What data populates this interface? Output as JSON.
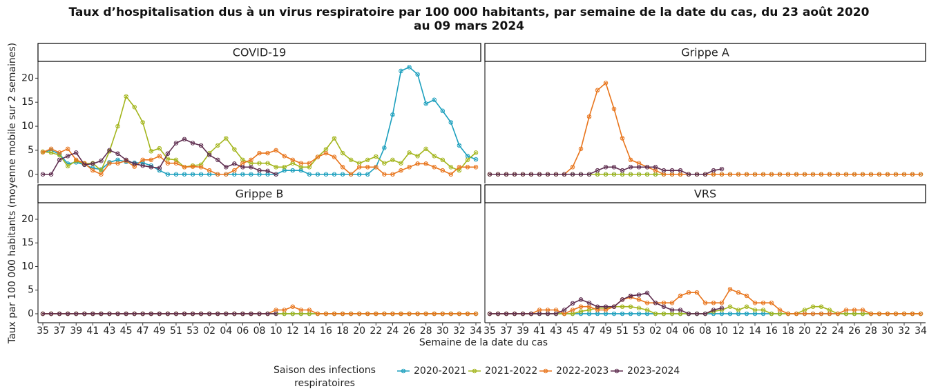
{
  "title": "Taux d’hospitalisation dus à un virus respiratoire par 100 000 habitants, par semaine de la date du cas, du 23 août 2020\nau 09 mars 2024",
  "x_label": "Semaine de la date du cas",
  "y_label": "Taux par 100 000 habitants (moyenne mobile sur 2 semaines)",
  "legend_title": "Saison des infections\nrespiratoires",
  "categories": [
    "35",
    null,
    "37",
    null,
    "39",
    null,
    "41",
    null,
    "43",
    null,
    "45",
    null,
    "47",
    null,
    "49",
    null,
    "51",
    null,
    "53",
    null,
    "02",
    null,
    "04",
    null,
    "06",
    null,
    "08",
    null,
    "10",
    null,
    "12",
    null,
    "14",
    null,
    "16",
    null,
    "18",
    null,
    "20",
    null,
    "22",
    null,
    "24",
    null,
    "26",
    null,
    "28",
    null,
    "30",
    null,
    "32",
    null,
    "34"
  ],
  "ylim": [
    -1.9,
    23.5
  ],
  "yticks": [
    0,
    5,
    10,
    15,
    20
  ],
  "chart_data": [
    {
      "type": "line",
      "title": "COVID-19",
      "series": [
        {
          "name": "2020-2021",
          "color": "#1b9fbd",
          "values": [
            4.6,
            5.0,
            4.2,
            2.2,
            2.5,
            2.0,
            1.3,
            1.0,
            2.5,
            3.0,
            2.6,
            2.4,
            2.4,
            1.8,
            0.8,
            0,
            0,
            0,
            0,
            0,
            0,
            0,
            0,
            0,
            0,
            0,
            0,
            0,
            0,
            0.8,
            0.8,
            0.8,
            0,
            0,
            0,
            0,
            0,
            0,
            0,
            0,
            1.5,
            5.5,
            12.4,
            21.5,
            22.3,
            20.8,
            14.7,
            15.5,
            13.2,
            10.8,
            6.0,
            3.8,
            3.1
          ]
        },
        {
          "name": "2021-2022",
          "color": "#a3b51c",
          "values": [
            4.7,
            4.5,
            4.0,
            1.7,
            2.8,
            2.2,
            2.3,
            0.8,
            4.8,
            10,
            16.2,
            14,
            10.8,
            4.8,
            5.4,
            3.2,
            3.0,
            1.5,
            1.8,
            2.0,
            4.4,
            6.0,
            7.5,
            5.2,
            3.0,
            2.3,
            2.3,
            2.3,
            1.5,
            1.5,
            2.3,
            1.5,
            1.5,
            3.6,
            5.2,
            7.5,
            4.4,
            3.0,
            2.3,
            3.0,
            3.7,
            2.3,
            3.0,
            2.3,
            4.5,
            3.8,
            5.3,
            3.8,
            3.0,
            1.5,
            0.8,
            3.0,
            4.5
          ]
        },
        {
          "name": "2022-2023",
          "color": "#e8741b",
          "values": [
            4.6,
            5.3,
            4.5,
            5.3,
            3.0,
            2.3,
            0.8,
            0,
            2.3,
            2.3,
            2.8,
            1.6,
            3.0,
            3.0,
            3.8,
            2.3,
            2.3,
            1.5,
            1.6,
            1.5,
            0.8,
            0,
            0,
            0.8,
            2.3,
            3.0,
            4.4,
            4.4,
            5.0,
            3.8,
            3.0,
            2.3,
            2.3,
            3.6,
            4.4,
            3.6,
            1.5,
            0,
            1.5,
            1.5,
            1.5,
            0,
            0,
            0.8,
            1.5,
            2.2,
            2.2,
            1.5,
            0.8,
            0,
            1.5,
            1.5,
            1.5
          ]
        },
        {
          "name": "2023-2024",
          "color": "#5e2d4f",
          "values": [
            0,
            0,
            3.0,
            3.8,
            4.5,
            2.0,
            2.2,
            2.8,
            5.0,
            4.3,
            3.0,
            2.2,
            1.8,
            1.5,
            1.3,
            4.3,
            6.5,
            7.3,
            6.5,
            6.0,
            4.0,
            3.0,
            1.5,
            2.2,
            1.5,
            1.5,
            0.8,
            0.7,
            0,
            null,
            null,
            null,
            null,
            null,
            null,
            null,
            null,
            null,
            null,
            null,
            null,
            null,
            null,
            null,
            null,
            null,
            null,
            null,
            null,
            null,
            null,
            null,
            null
          ]
        }
      ]
    },
    {
      "type": "line",
      "title": "Grippe A",
      "series": [
        {
          "name": "2020-2021",
          "color": "#1b9fbd",
          "values": [
            0,
            0,
            0,
            0,
            0,
            0,
            0,
            0,
            0,
            0,
            0,
            0,
            0,
            0,
            0,
            0,
            0,
            0,
            0,
            0,
            0,
            0,
            0,
            0,
            0,
            0,
            0,
            0,
            0,
            0,
            0,
            0,
            0,
            0,
            0,
            0,
            0,
            0,
            0,
            0,
            0,
            0,
            0,
            0,
            0,
            0,
            0,
            0,
            0,
            0,
            0,
            0,
            0
          ]
        },
        {
          "name": "2021-2022",
          "color": "#a3b51c",
          "values": [
            0,
            0,
            0,
            0,
            0,
            0,
            0,
            0,
            0,
            0,
            0,
            0,
            0,
            0,
            0,
            0,
            0,
            0,
            0,
            0,
            0,
            0,
            0,
            0,
            0,
            0,
            0,
            0,
            0,
            0,
            0,
            0,
            0,
            0,
            0,
            0,
            0,
            0,
            0,
            0,
            0,
            0,
            0,
            0,
            0,
            0,
            0,
            0,
            0,
            0,
            0,
            0,
            0
          ]
        },
        {
          "name": "2022-2023",
          "color": "#e8741b",
          "values": [
            0,
            0,
            0,
            0,
            0,
            0,
            0,
            0,
            0,
            0,
            1.5,
            5.3,
            12,
            17.5,
            19,
            13.6,
            7.5,
            3.0,
            2.3,
            1.5,
            0.8,
            0,
            0,
            0,
            0,
            0,
            0,
            0,
            0,
            0,
            0,
            0,
            0,
            0,
            0,
            0,
            0,
            0,
            0,
            0,
            0,
            0,
            0,
            0,
            0,
            0,
            0,
            0,
            0,
            0,
            0,
            0,
            0
          ]
        },
        {
          "name": "2023-2024",
          "color": "#5e2d4f",
          "values": [
            0,
            0,
            0,
            0,
            0,
            0,
            0,
            0,
            0,
            0,
            0,
            0,
            0,
            0.8,
            1.5,
            1.5,
            0.8,
            1.5,
            1.5,
            1.5,
            1.5,
            0.8,
            0.8,
            0.8,
            0,
            0,
            0,
            0.8,
            1.1,
            null,
            null,
            null,
            null,
            null,
            null,
            null,
            null,
            null,
            null,
            null,
            null,
            null,
            null,
            null,
            null,
            null,
            null,
            null,
            null,
            null,
            null,
            null,
            null
          ]
        }
      ]
    },
    {
      "type": "line",
      "title": "Grippe B",
      "series": [
        {
          "name": "2020-2021",
          "color": "#1b9fbd",
          "values": [
            0,
            0,
            0,
            0,
            0,
            0,
            0,
            0,
            0,
            0,
            0,
            0,
            0,
            0,
            0,
            0,
            0,
            0,
            0,
            0,
            0,
            0,
            0,
            0,
            0,
            0,
            0,
            0,
            0,
            0,
            0,
            0,
            0,
            0,
            0,
            0,
            0,
            0,
            0,
            0,
            0,
            0,
            0,
            0,
            0,
            0,
            0,
            0,
            0,
            0,
            0,
            0,
            0
          ]
        },
        {
          "name": "2021-2022",
          "color": "#a3b51c",
          "values": [
            0,
            0,
            0,
            0,
            0,
            0,
            0,
            0,
            0,
            0,
            0,
            0,
            0,
            0,
            0,
            0,
            0,
            0,
            0,
            0,
            0,
            0,
            0,
            0,
            0,
            0,
            0,
            0,
            0,
            0,
            0,
            0,
            0,
            0,
            0,
            0,
            0,
            0,
            0,
            0,
            0,
            0,
            0,
            0,
            0,
            0,
            0,
            0,
            0,
            0,
            0,
            0,
            0
          ]
        },
        {
          "name": "2022-2023",
          "color": "#e8741b",
          "values": [
            0,
            0,
            0,
            0,
            0,
            0,
            0,
            0,
            0,
            0,
            0,
            0,
            0,
            0,
            0,
            0,
            0,
            0,
            0,
            0,
            0,
            0,
            0,
            0,
            0,
            0,
            0,
            0,
            0.8,
            0.8,
            1.5,
            0.8,
            0.8,
            0,
            0,
            0,
            0,
            0,
            0,
            0,
            0,
            0,
            0,
            0,
            0,
            0,
            0,
            0,
            0,
            0,
            0,
            0,
            0
          ]
        },
        {
          "name": "2023-2024",
          "color": "#5e2d4f",
          "values": [
            0,
            0,
            0,
            0,
            0,
            0,
            0,
            0,
            0,
            0,
            0,
            0,
            0,
            0,
            0,
            0,
            0,
            0,
            0,
            0,
            0,
            0,
            0,
            0,
            0,
            0,
            0,
            0,
            0,
            null,
            null,
            null,
            null,
            null,
            null,
            null,
            null,
            null,
            null,
            null,
            null,
            null,
            null,
            null,
            null,
            null,
            null,
            null,
            null,
            null,
            null,
            null,
            null
          ]
        }
      ]
    },
    {
      "type": "line",
      "title": "VRS",
      "series": [
        {
          "name": "2020-2021",
          "color": "#1b9fbd",
          "values": [
            0,
            0,
            0,
            0,
            0,
            0,
            0,
            0,
            0,
            0,
            0,
            0,
            0,
            0,
            0,
            0,
            0,
            0,
            0,
            0,
            0,
            0,
            0,
            0,
            0,
            0,
            0,
            0,
            0,
            0,
            0,
            0,
            0,
            0,
            0,
            0,
            0,
            0,
            0,
            0,
            0,
            0,
            0,
            0,
            0,
            0,
            0,
            0,
            0,
            0,
            0,
            0,
            0
          ]
        },
        {
          "name": "2021-2022",
          "color": "#a3b51c",
          "values": [
            0,
            0,
            0,
            0,
            0,
            0,
            0,
            0,
            0,
            0,
            0,
            0.5,
            0.8,
            1.2,
            1.2,
            1.5,
            1.5,
            1.5,
            1.2,
            0.8,
            0,
            0,
            0,
            0,
            0,
            0,
            0,
            0.5,
            0.8,
            1.5,
            0.8,
            1.5,
            0.8,
            0.8,
            0,
            0,
            0,
            0,
            0.8,
            1.5,
            1.5,
            0.8,
            0,
            0,
            0,
            0,
            0,
            0,
            0,
            0,
            0,
            0,
            0
          ]
        },
        {
          "name": "2022-2023",
          "color": "#e8741b",
          "values": [
            0,
            0,
            0,
            0,
            0,
            0,
            0.8,
            0.8,
            0.8,
            0,
            0.8,
            1.5,
            1.5,
            0.8,
            0.8,
            1.5,
            3.0,
            3.5,
            3.0,
            2.3,
            2.3,
            2.3,
            2.3,
            3.8,
            4.5,
            4.5,
            2.3,
            2.3,
            2.3,
            5.2,
            4.5,
            3.8,
            2.3,
            2.3,
            2.3,
            0.8,
            0,
            0,
            0,
            0,
            0,
            0,
            0,
            0.8,
            0.8,
            0.8,
            0,
            0,
            0,
            0,
            0,
            0,
            0
          ]
        },
        {
          "name": "2023-2024",
          "color": "#5e2d4f",
          "values": [
            0,
            0,
            0,
            0,
            0,
            0,
            0,
            0,
            0,
            0.8,
            2.2,
            3.0,
            2.3,
            1.5,
            1.5,
            1.5,
            3.0,
            3.8,
            4.0,
            4.4,
            2.3,
            1.5,
            0.8,
            0.8,
            0,
            0,
            0,
            0.8,
            1.2,
            null,
            null,
            null,
            null,
            null,
            null,
            null,
            null,
            null,
            null,
            null,
            null,
            null,
            null,
            null,
            null,
            null,
            null,
            null,
            null,
            null,
            null,
            null,
            null
          ]
        }
      ]
    }
  ]
}
